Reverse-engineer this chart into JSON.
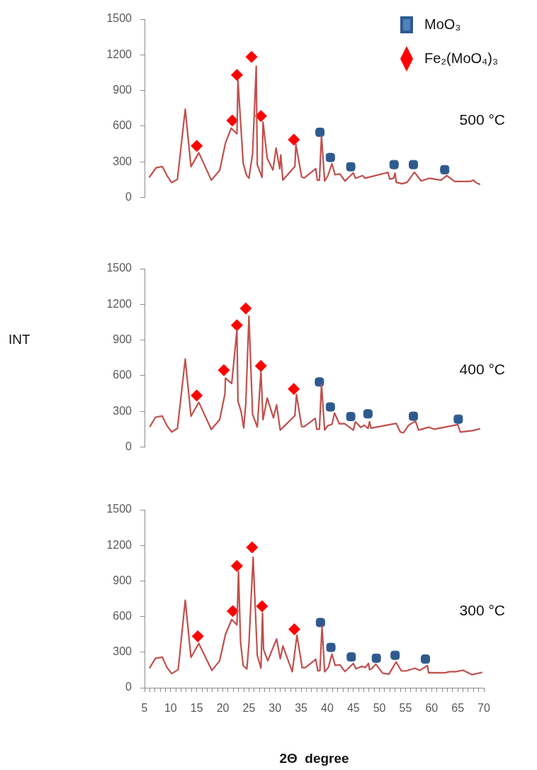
{
  "chart_data": [
    {
      "type": "line",
      "tick_labels": "y",
      "xlim": [
        5,
        70
      ],
      "ylim": [
        0,
        1500
      ],
      "yticks": [
        0,
        300,
        600,
        900,
        1200,
        1500
      ],
      "legend": "top right",
      "annotations": [
        "500 °C"
      ],
      "series": [
        {
          "type": "line",
          "color": "#c0504d",
          "x": [
            5.9,
            7.2,
            8.4,
            9.3,
            10.2,
            11.3,
            12.8,
            13.9,
            15.4,
            17.8,
            19.4,
            20.5,
            21.6,
            22.7,
            22.9,
            23.9,
            24.5,
            25.0,
            25.7,
            26.4,
            26.6,
            27.5,
            27.7,
            28.5,
            29.6,
            30.2,
            30.9,
            31.1,
            31.5,
            33.8,
            34.0,
            35.1,
            35.6,
            37.8,
            38.1,
            38.5,
            38.9,
            39.5,
            40.1,
            40.9,
            41.5,
            42.4,
            43.4,
            45.0,
            45.4,
            46.8,
            47.2,
            51.6,
            52.0,
            52.7,
            53.0,
            53.2,
            54.3,
            55.3,
            56.7,
            58.0,
            59.5,
            61.8,
            62.9,
            64.4,
            67.4,
            68.0,
            68.4,
            68.9,
            69.3
          ],
          "values": [
            168,
            249,
            260,
            184,
            124,
            152,
            742,
            258,
            376,
            145,
            228,
            456,
            583,
            535,
            984,
            288,
            191,
            161,
            369,
            1104,
            276,
            168,
            634,
            329,
            230,
            415,
            242,
            357,
            145,
            260,
            445,
            173,
            164,
            242,
            145,
            145,
            518,
            138,
            180,
            283,
            191,
            198,
            138,
            207,
            161,
            184,
            161,
            210,
            154,
            161,
            205,
            127,
            115,
            127,
            212,
            138,
            161,
            145,
            184,
            134,
            134,
            145,
            127,
            115,
            110
          ]
        },
        {
          "type": "scatter",
          "name": "MoO₃",
          "color": "#2f5a8f",
          "marker": "square",
          "x": [
            38.6,
            40.6,
            44.5,
            52.8,
            56.5,
            62.5
          ],
          "values": [
            548,
            336,
            258,
            276,
            276,
            233
          ]
        },
        {
          "type": "scatter",
          "name": "Fe₂(MoO₄)₃",
          "color": "#ff0000",
          "marker": "diamond",
          "x": [
            15.0,
            21.8,
            22.7,
            25.5,
            27.3,
            33.6
          ],
          "values": [
            433,
            647,
            1030,
            1182,
            684,
            486
          ]
        }
      ]
    },
    {
      "type": "line",
      "tick_labels": "y",
      "xlim": [
        5,
        70
      ],
      "ylim": [
        0,
        1500
      ],
      "yticks": [
        0,
        300,
        600,
        900,
        1200,
        1500
      ],
      "ylabel": "INT",
      "annotations": [
        "400 °C"
      ],
      "series": [
        {
          "type": "line",
          "color": "#c0504d",
          "x": [
            6.0,
            7.1,
            8.4,
            9.3,
            10.2,
            11.3,
            12.8,
            13.9,
            15.4,
            17.8,
            19.4,
            20.4,
            20.5,
            21.7,
            22.7,
            22.9,
            23.5,
            24.0,
            24.4,
            25.0,
            25.7,
            26.6,
            27.3,
            27.7,
            28.5,
            29.7,
            30.3,
            31.0,
            33.8,
            34.1,
            35.1,
            35.6,
            37.7,
            38.0,
            38.5,
            38.9,
            39.5,
            40.1,
            40.9,
            41.4,
            42.3,
            43.3,
            45.0,
            45.4,
            46.4,
            47.1,
            47.8,
            48.1,
            48.4,
            53.2,
            54.0,
            54.6,
            55.6,
            56.9,
            57.5,
            59.5,
            60.5,
            65.0,
            65.5,
            67.8,
            69.3
          ],
          "values": [
            169,
            250,
            261,
            179,
            126,
            156,
            740,
            259,
            376,
            147,
            231,
            447,
            579,
            534,
            985,
            385,
            298,
            160,
            366,
            1101,
            275,
            167,
            634,
            229,
            412,
            245,
            355,
            142,
            263,
            442,
            172,
            172,
            240,
            149,
            149,
            527,
            142,
            179,
            190,
            286,
            195,
            197,
            142,
            213,
            165,
            183,
            156,
            213,
            158,
            199,
            126,
            119,
            183,
            218,
            142,
            167,
            149,
            188,
            126,
            137,
            153
          ]
        },
        {
          "type": "scatter",
          "color": "#2f5a8f",
          "marker": "square",
          "x": [
            38.5,
            40.6,
            44.5,
            47.8,
            56.5,
            65.1
          ],
          "values": [
            547,
            337,
            256,
            279,
            259,
            234
          ]
        },
        {
          "type": "scatter",
          "color": "#ff0000",
          "marker": "diamond",
          "x": [
            15.0,
            20.2,
            22.7,
            24.4,
            27.3,
            33.6
          ],
          "values": [
            433,
            646,
            1024,
            1166,
            682,
            488
          ]
        }
      ]
    },
    {
      "type": "line",
      "xlim": [
        5,
        70
      ],
      "ylim": [
        0,
        1500
      ],
      "yticks": [
        0,
        300,
        600,
        900,
        1200,
        1500
      ],
      "xlabel": "2Θ  degree",
      "annotations": [
        "300 °C"
      ],
      "xticks": [
        5,
        {
          "value": 6,
          "label": null
        },
        {
          "value": 7,
          "label": null
        },
        {
          "value": 8,
          "label": null
        },
        {
          "value": 9,
          "label": null
        },
        10,
        {
          "value": 11,
          "label": null
        },
        {
          "value": 12,
          "label": null
        },
        {
          "value": 13,
          "label": null
        },
        {
          "value": 14,
          "label": null
        },
        15,
        {
          "value": 16,
          "label": null
        },
        {
          "value": 17,
          "label": null
        },
        {
          "value": 18,
          "label": null
        },
        {
          "value": 19,
          "label": null
        },
        20,
        {
          "value": 21,
          "label": null
        },
        {
          "value": 22,
          "label": null
        },
        {
          "value": 23,
          "label": null
        },
        {
          "value": 24,
          "label": null
        },
        25,
        {
          "value": 26,
          "label": null
        },
        {
          "value": 27,
          "label": null
        },
        {
          "value": 28,
          "label": null
        },
        {
          "value": 29,
          "label": null
        },
        30,
        {
          "value": 31,
          "label": null
        },
        {
          "value": 32,
          "label": null
        },
        {
          "value": 33,
          "label": null
        },
        {
          "value": 34,
          "label": null
        },
        35,
        {
          "value": 36,
          "label": null
        },
        {
          "value": 37,
          "label": null
        },
        {
          "value": 38,
          "label": null
        },
        {
          "value": 39,
          "label": null
        },
        40,
        {
          "value": 41,
          "label": null
        },
        {
          "value": 42,
          "label": null
        },
        {
          "value": 43,
          "label": null
        },
        {
          "value": 44,
          "label": null
        },
        45,
        {
          "value": 46,
          "label": null
        },
        {
          "value": 47,
          "label": null
        },
        {
          "value": 48,
          "label": null
        },
        {
          "value": 49,
          "label": null
        },
        50,
        {
          "value": 51,
          "label": null
        },
        {
          "value": 52,
          "label": null
        },
        {
          "value": 53,
          "label": null
        },
        {
          "value": 54,
          "label": null
        },
        55,
        {
          "value": 56,
          "label": null
        },
        {
          "value": 57,
          "label": null
        },
        {
          "value": 58,
          "label": null
        },
        {
          "value": 59,
          "label": null
        },
        60,
        {
          "value": 61,
          "label": null
        },
        {
          "value": 62,
          "label": null
        },
        {
          "value": 63,
          "label": null
        },
        {
          "value": 64,
          "label": null
        },
        65,
        {
          "value": 66,
          "label": null
        },
        {
          "value": 67,
          "label": null
        },
        {
          "value": 68,
          "label": null
        },
        {
          "value": 69,
          "label": null
        },
        70
      ],
      "series": [
        {
          "type": "line",
          "color": "#c0504d",
          "x": [
            5.95,
            7.1,
            8.4,
            9.3,
            10.2,
            11.45,
            12.8,
            13.9,
            15.4,
            17.9,
            19.4,
            20.5,
            21.7,
            22.7,
            23.0,
            23.4,
            23.9,
            24.6,
            25.0,
            25.8,
            26.6,
            27.3,
            27.6,
            27.8,
            28.6,
            30.3,
            31.0,
            31.5,
            33.3,
            34.2,
            35.2,
            35.8,
            37.8,
            38.2,
            38.6,
            39.0,
            39.5,
            40.2,
            40.9,
            41.5,
            42.4,
            43.4,
            45.0,
            45.5,
            46.6,
            47.3,
            47.9,
            48.1,
            48.5,
            49.3,
            50.6,
            51.8,
            53.2,
            54.2,
            55.1,
            56.8,
            57.7,
            59.2,
            59.4,
            62.6,
            63.4,
            64.6,
            66.0,
            67.7,
            69.7
          ],
          "values": [
            164,
            249,
            258,
            171,
            119,
            153,
            737,
            256,
            374,
            146,
            228,
            450,
            575,
            530,
            979,
            381,
            187,
            158,
            370,
            1100,
            272,
            164,
            632,
            324,
            228,
            411,
            244,
            352,
            135,
            443,
            169,
            169,
            240,
            142,
            146,
            518,
            135,
            171,
            283,
            189,
            194,
            137,
            205,
            160,
            180,
            171,
            205,
            153,
            160,
            199,
            123,
            114,
            217,
            142,
            142,
            164,
            146,
            187,
            126,
            126,
            135,
            135,
            148,
            110,
            130
          ]
        },
        {
          "type": "scatter",
          "color": "#2f5a8f",
          "marker": "square",
          "x": [
            38.7,
            40.7,
            44.6,
            49.4,
            53.0,
            58.8
          ],
          "values": [
            550,
            340,
            260,
            249,
            274,
            242
          ]
        },
        {
          "type": "scatter",
          "color": "#ff0000",
          "marker": "diamond",
          "x": [
            15.2,
            21.9,
            22.7,
            25.6,
            27.5,
            33.7
          ],
          "values": [
            434,
            646,
            1027,
            1183,
            687,
            493
          ]
        }
      ]
    }
  ]
}
